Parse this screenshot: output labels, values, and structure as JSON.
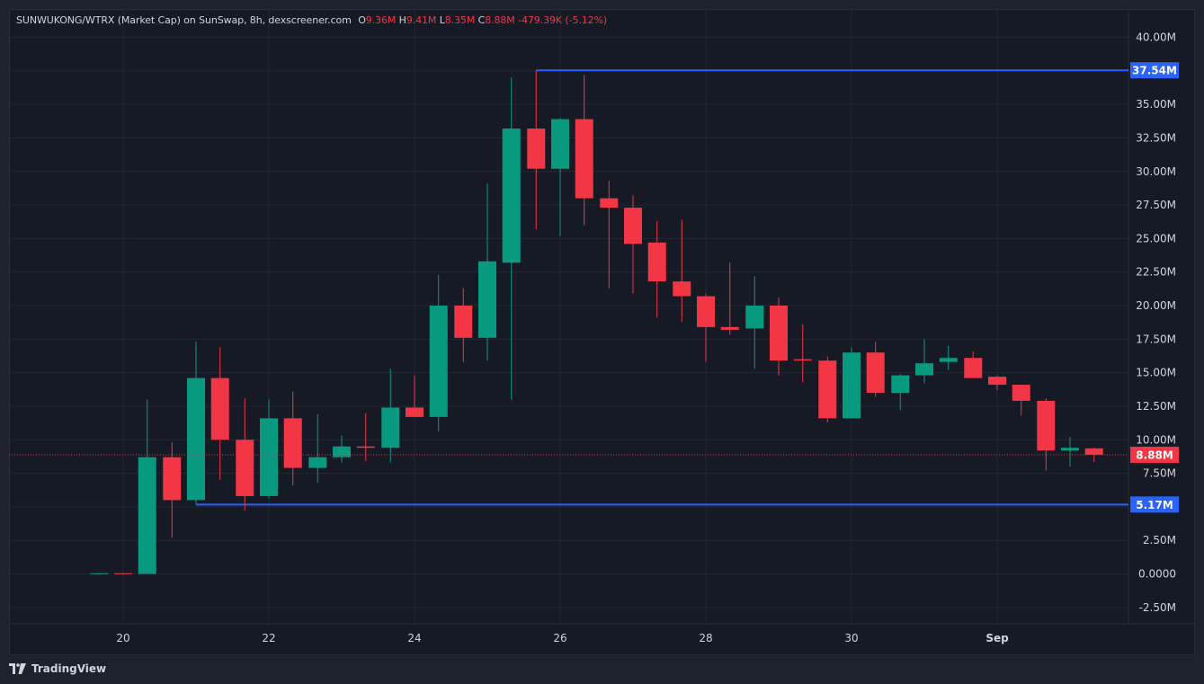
{
  "legend": {
    "symbol": "SUNWUKONG/WTRX (Market Cap) on SunSwap, 8h, dexscreener.com",
    "o_label": "O",
    "o_value": "9.36M",
    "h_label": "H",
    "h_value": "9.41M",
    "l_label": "L",
    "l_value": "8.35M",
    "c_label": "C",
    "c_value": "8.88M",
    "change": "-479.39K (-5.12%)"
  },
  "branding": {
    "label": "TradingView"
  },
  "colors": {
    "up": "#089981",
    "down": "#f23645",
    "line": "#2962ff",
    "grid": "#232733",
    "bg": "#161a25"
  },
  "chart_data": {
    "type": "candlestick",
    "timeframe": "8h",
    "ylim": [
      -2.5,
      40
    ],
    "y_unit": "M",
    "y_ticks": [
      "40.00M",
      "37.50M",
      "35.00M",
      "32.50M",
      "30.00M",
      "27.50M",
      "25.00M",
      "22.50M",
      "20.00M",
      "17.50M",
      "15.00M",
      "12.50M",
      "10.00M",
      "7.50M",
      "5.00M",
      "2.50M",
      "0.0000",
      "-2.50M"
    ],
    "x_ticks": [
      {
        "label": "20",
        "day": 20
      },
      {
        "label": "22",
        "day": 22
      },
      {
        "label": "24",
        "day": 24
      },
      {
        "label": "26",
        "day": 26
      },
      {
        "label": "28",
        "day": 28
      },
      {
        "label": "30",
        "day": 30
      },
      {
        "label": "Sep",
        "day": 32
      }
    ],
    "candles": [
      {
        "t": 19.67,
        "o": 0.0,
        "h": 0.05,
        "l": -0.05,
        "c": 0.05
      },
      {
        "t": 20.0,
        "o": 0.05,
        "h": 0.05,
        "l": -0.05,
        "c": 0.0
      },
      {
        "t": 20.33,
        "o": 0.0,
        "h": 13.0,
        "l": 0.0,
        "c": 8.7
      },
      {
        "t": 20.67,
        "o": 8.7,
        "h": 9.8,
        "l": 2.7,
        "c": 5.5
      },
      {
        "t": 21.0,
        "o": 5.5,
        "h": 17.3,
        "l": 5.2,
        "c": 14.6
      },
      {
        "t": 21.33,
        "o": 14.6,
        "h": 16.9,
        "l": 7.0,
        "c": 10.0
      },
      {
        "t": 21.67,
        "o": 10.0,
        "h": 13.1,
        "l": 4.7,
        "c": 5.8
      },
      {
        "t": 22.0,
        "o": 5.8,
        "h": 13.0,
        "l": 5.6,
        "c": 11.6
      },
      {
        "t": 22.33,
        "o": 11.6,
        "h": 13.6,
        "l": 6.6,
        "c": 7.9
      },
      {
        "t": 22.67,
        "o": 7.9,
        "h": 11.9,
        "l": 6.8,
        "c": 8.7
      },
      {
        "t": 23.0,
        "o": 8.7,
        "h": 10.3,
        "l": 8.3,
        "c": 9.5
      },
      {
        "t": 23.33,
        "o": 9.5,
        "h": 12.0,
        "l": 8.4,
        "c": 9.4
      },
      {
        "t": 23.67,
        "o": 9.4,
        "h": 15.3,
        "l": 8.3,
        "c": 12.4
      },
      {
        "t": 24.0,
        "o": 12.4,
        "h": 14.8,
        "l": 11.7,
        "c": 11.7
      },
      {
        "t": 24.33,
        "o": 11.7,
        "h": 22.3,
        "l": 10.6,
        "c": 20.0
      },
      {
        "t": 24.67,
        "o": 20.0,
        "h": 21.3,
        "l": 15.8,
        "c": 17.6
      },
      {
        "t": 25.0,
        "o": 17.6,
        "h": 29.1,
        "l": 15.9,
        "c": 23.3
      },
      {
        "t": 25.33,
        "o": 23.2,
        "h": 37.0,
        "l": 13.0,
        "c": 33.2
      },
      {
        "t": 25.67,
        "o": 33.2,
        "h": 37.54,
        "l": 25.7,
        "c": 30.2
      },
      {
        "t": 26.0,
        "o": 30.2,
        "h": 34.0,
        "l": 25.2,
        "c": 33.9
      },
      {
        "t": 26.33,
        "o": 33.9,
        "h": 37.2,
        "l": 26.0,
        "c": 28.0
      },
      {
        "t": 26.67,
        "o": 28.0,
        "h": 29.3,
        "l": 21.3,
        "c": 27.3
      },
      {
        "t": 27.0,
        "o": 27.3,
        "h": 28.2,
        "l": 20.9,
        "c": 24.6
      },
      {
        "t": 27.33,
        "o": 24.7,
        "h": 26.3,
        "l": 19.1,
        "c": 21.8
      },
      {
        "t": 27.67,
        "o": 21.8,
        "h": 26.4,
        "l": 18.8,
        "c": 20.7
      },
      {
        "t": 28.0,
        "o": 20.7,
        "h": 20.9,
        "l": 15.8,
        "c": 18.4
      },
      {
        "t": 28.33,
        "o": 18.4,
        "h": 23.2,
        "l": 17.8,
        "c": 18.2
      },
      {
        "t": 28.67,
        "o": 18.3,
        "h": 22.2,
        "l": 15.3,
        "c": 20.0
      },
      {
        "t": 29.0,
        "o": 20.0,
        "h": 20.6,
        "l": 14.8,
        "c": 15.9
      },
      {
        "t": 29.33,
        "o": 16.0,
        "h": 18.6,
        "l": 14.3,
        "c": 15.9
      },
      {
        "t": 29.67,
        "o": 15.9,
        "h": 16.2,
        "l": 11.3,
        "c": 11.6
      },
      {
        "t": 30.0,
        "o": 11.6,
        "h": 16.9,
        "l": 11.6,
        "c": 16.5
      },
      {
        "t": 30.33,
        "o": 16.5,
        "h": 17.3,
        "l": 13.2,
        "c": 13.5
      },
      {
        "t": 30.67,
        "o": 13.5,
        "h": 14.9,
        "l": 12.2,
        "c": 14.8
      },
      {
        "t": 31.0,
        "o": 14.8,
        "h": 17.5,
        "l": 14.2,
        "c": 15.7
      },
      {
        "t": 31.33,
        "o": 15.8,
        "h": 17.0,
        "l": 15.2,
        "c": 16.1
      },
      {
        "t": 31.67,
        "o": 16.1,
        "h": 16.6,
        "l": 14.6,
        "c": 14.6
      },
      {
        "t": 32.0,
        "o": 14.7,
        "h": 14.8,
        "l": 13.7,
        "c": 14.1
      },
      {
        "t": 32.33,
        "o": 14.1,
        "h": 14.1,
        "l": 11.8,
        "c": 12.9
      },
      {
        "t": 32.67,
        "o": 12.9,
        "h": 13.1,
        "l": 7.7,
        "c": 9.2
      },
      {
        "t": 33.0,
        "o": 9.2,
        "h": 10.2,
        "l": 8.0,
        "c": 9.4
      },
      {
        "t": 33.33,
        "o": 9.36,
        "h": 9.41,
        "l": 8.35,
        "c": 8.88
      }
    ],
    "horizontal_lines": [
      {
        "value": 37.54,
        "label": "37.54M",
        "from_day": 25.67
      },
      {
        "value": 5.17,
        "label": "5.17M",
        "from_day": 21.0
      }
    ],
    "last_price": {
      "value": 8.88,
      "label": "8.88M"
    }
  }
}
